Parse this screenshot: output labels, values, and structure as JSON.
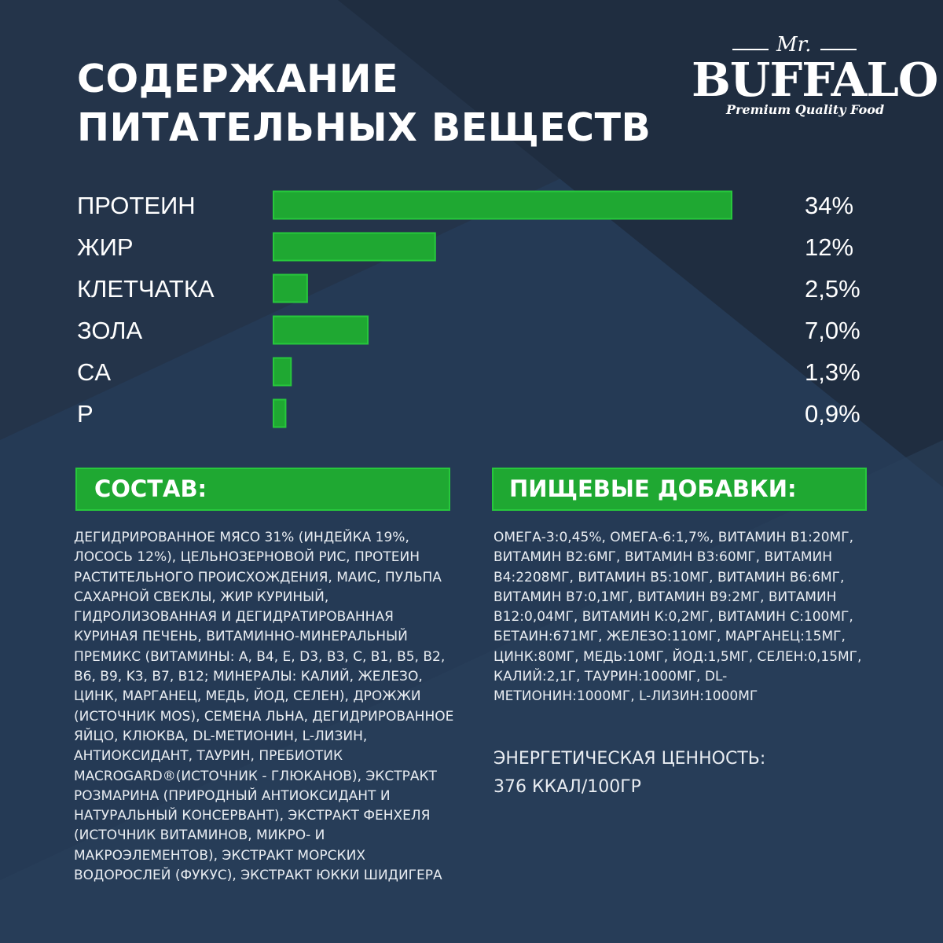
{
  "colors": {
    "background": "#24344a",
    "accent_green": "#1fa832",
    "text": "#ffffff"
  },
  "title": {
    "line1": "СОДЕРЖАНИЕ",
    "line2": "ПИТАТЕЛЬНЫХ ВЕЩЕСТВ"
  },
  "logo": {
    "prefix": "Mr.",
    "brand": "BUFFALO",
    "tagline": "Premium Quality Food"
  },
  "chart_data": {
    "type": "bar",
    "orientation": "horizontal",
    "categories": [
      "ПРОТЕИН",
      "ЖИР",
      "КЛЕТЧАТКА",
      "ЗОЛА",
      "CA",
      "P"
    ],
    "values": [
      34,
      12,
      2.5,
      7.0,
      1.3,
      0.9
    ],
    "value_labels": [
      "34%",
      "12%",
      "2,5%",
      "7,0%",
      "1,3%",
      "0,9%"
    ],
    "unit": "%",
    "xlim": [
      0,
      34
    ],
    "grid": false,
    "legend": "none",
    "bar_color": "#1fa832"
  },
  "sections": {
    "composition_title": "СОСТАВ:",
    "additives_title": "ПИЩЕВЫЕ ДОБАВКИ:"
  },
  "composition_text": "ДЕГИДРИРОВАННОЕ МЯСО 31% (ИНДЕЙКА 19%, ЛОСОСЬ 12%), ЦЕЛЬНОЗЕРНОВОЙ РИС, ПРОТЕИН РАСТИТЕЛЬНОГО ПРОИСХОЖДЕНИЯ, МАИС, ПУЛЬПА САХАРНОЙ СВЕКЛЫ, ЖИР КУРИНЫЙ, ГИДРОЛИЗОВАННАЯ И ДЕГИДРАТИРОВАННАЯ КУРИНАЯ ПЕЧЕНЬ, ВИТАМИННО-МИНЕРАЛЬНЫЙ ПРЕМИКС (ВИТАМИНЫ: A, B4, E, D3, B3, C, B1, B5, B2, B6, B9, K3, B7, B12; МИНЕРАЛЫ: КАЛИЙ, ЖЕЛЕЗО, ЦИНК, МАРГАНЕЦ, МЕДЬ, ЙОД, СЕЛЕН), ДРОЖЖИ (ИСТОЧНИК MOS), СЕМЕНА ЛЬНА, ДЕГИДРИРОВАННОЕ ЯЙЦО, КЛЮКВА, DL-МЕТИОНИН, L-ЛИЗИН, АНТИОКСИДАНТ, ТАУРИН, ПРЕБИОТИК MACROGARD®(ИСТОЧНИК - ГЛЮКАНОВ), ЭКСТРАКТ РОЗМАРИНА (ПРИРОДНЫЙ АНТИОКСИДАНТ И НАТУРАЛЬНЫЙ КОНСЕРВАНТ), ЭКСТРАКТ ФЕНХЕЛЯ (ИСТОЧНИК ВИТАМИНОВ, МИКРО- И МАКРОЭЛЕМЕНТОВ), ЭКСТРАКТ МОРСКИХ ВОДОРОСЛЕЙ (ФУКУС), ЭКСТРАКТ ЮККИ ШИДИГЕРА",
  "additives_text": "ОМЕГА-3:0,45%, ОМЕГА-6:1,7%, ВИТАМИН В1:20МГ, ВИТАМИН В2:6МГ, ВИТАМИН В3:60МГ, ВИТАМИН В4:2208МГ, ВИТАМИН В5:10МГ, ВИТАМИН В6:6МГ, ВИТАМИН В7:0,1МГ, ВИТАМИН В9:2МГ, ВИТАМИН В12:0,04МГ, ВИТАМИН К:0,2МГ, ВИТАМИН С:100МГ, БЕТАИН:671МГ, ЖЕЛЕЗО:110МГ, МАРГАНЕЦ:15МГ, ЦИНК:80МГ, МЕДЬ:10МГ, ЙОД:1,5МГ, СЕЛЕН:0,15МГ, КАЛИЙ:2,1Г, ТАУРИН:1000МГ, DL-МЕТИОНИН:1000МГ, L-ЛИЗИН:1000МГ",
  "energy": {
    "label": "ЭНЕРГЕТИЧЕСКАЯ ЦЕННОСТЬ:",
    "value": "376 ККАЛ/100ГР"
  }
}
